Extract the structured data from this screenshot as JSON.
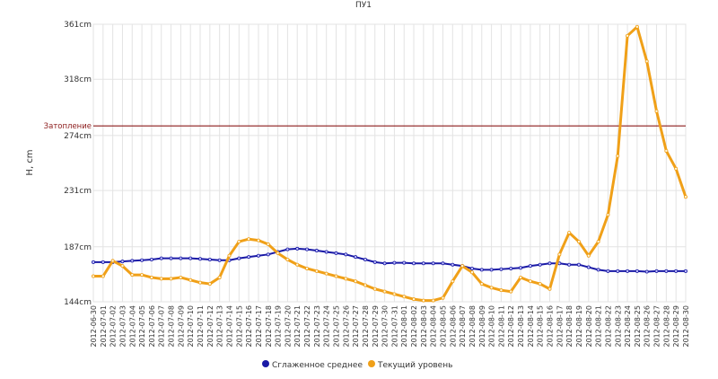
{
  "chart_data": {
    "type": "line",
    "title": "ПУ1",
    "ylabel": "H, cm",
    "ylim": [
      144,
      361
    ],
    "y_ticks": [
      {
        "value": 144,
        "label": "144cm"
      },
      {
        "value": 187,
        "label": "187cm"
      },
      {
        "value": 231,
        "label": "231cm"
      },
      {
        "value": 274,
        "label": "274cm"
      },
      {
        "value": 318,
        "label": "318cm"
      },
      {
        "value": 361,
        "label": "361cm"
      }
    ],
    "grid": true,
    "legend_position": "bottom-center",
    "threshold": {
      "label": "Затопление",
      "value": 281.5,
      "color": "#8b1a1a"
    },
    "x": [
      "2012-06-30",
      "2012-07-01",
      "2012-07-02",
      "2012-07-03",
      "2012-07-04",
      "2012-07-05",
      "2012-07-06",
      "2012-07-07",
      "2012-07-08",
      "2012-07-09",
      "2012-07-10",
      "2012-07-11",
      "2012-07-12",
      "2012-07-13",
      "2012-07-14",
      "2012-07-15",
      "2012-07-16",
      "2012-07-17",
      "2012-07-18",
      "2012-07-19",
      "2012-07-20",
      "2012-07-21",
      "2012-07-22",
      "2012-07-23",
      "2012-07-24",
      "2012-07-25",
      "2012-07-26",
      "2012-07-27",
      "2012-07-28",
      "2012-07-29",
      "2012-07-30",
      "2012-07-31",
      "2012-08-01",
      "2012-08-02",
      "2012-08-03",
      "2012-08-04",
      "2012-08-05",
      "2012-08-06",
      "2012-08-07",
      "2012-08-08",
      "2012-08-09",
      "2012-08-10",
      "2012-08-11",
      "2012-08-12",
      "2012-08-13",
      "2012-08-14",
      "2012-08-15",
      "2012-08-16",
      "2012-08-17",
      "2012-08-18",
      "2012-08-19",
      "2012-08-20",
      "2012-08-21",
      "2012-08-22",
      "2012-08-23",
      "2012-08-24",
      "2012-08-25",
      "2012-08-26",
      "2012-08-27",
      "2012-08-28",
      "2012-08-29",
      "2012-08-30"
    ],
    "series": [
      {
        "name": "Сглаженное среднее",
        "color": "#1a1aa6",
        "values": [
          175,
          175,
          175,
          175.5,
          176,
          176.5,
          177,
          178,
          178,
          178,
          178,
          177.5,
          177,
          176.5,
          176.5,
          178,
          179,
          180,
          181,
          183,
          185,
          185.5,
          185,
          184,
          183,
          182,
          181,
          179,
          177,
          175,
          174,
          174.5,
          174.5,
          174,
          174,
          174,
          174,
          173,
          172,
          170,
          169,
          169,
          169.5,
          170,
          170.5,
          172,
          173,
          174,
          174,
          173,
          173,
          171,
          169,
          168,
          168,
          168,
          168,
          167.5,
          168,
          168,
          168,
          168
        ]
      },
      {
        "name": "Текущий уровень",
        "color": "#f0a018",
        "values": [
          164,
          164,
          176,
          172,
          165,
          165,
          163,
          162,
          162,
          163,
          161,
          159,
          158,
          163,
          180,
          191,
          193,
          192,
          189,
          182,
          177,
          173,
          170,
          168,
          166,
          164,
          162,
          160,
          157,
          154,
          152,
          150,
          148,
          146,
          145,
          145,
          147,
          160,
          172,
          167,
          158,
          155,
          153,
          152,
          163,
          160,
          158,
          154,
          181,
          198,
          191,
          180,
          191,
          212,
          258,
          352,
          359,
          332,
          293,
          262,
          248,
          226
        ]
      }
    ]
  }
}
